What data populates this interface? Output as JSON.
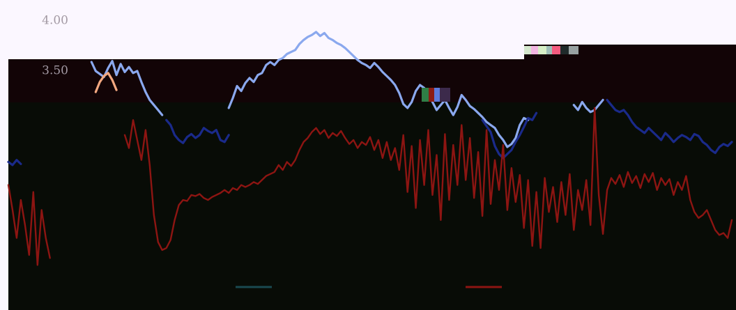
{
  "chart_data": {
    "type": "line",
    "title": "",
    "xlabel": "",
    "ylabel": "",
    "y_ticks": [
      {
        "label": "4.00",
        "value": 4.0
      },
      {
        "label": "3.50",
        "value": 3.5
      }
    ],
    "ylim": [
      1.1,
      4.2
    ],
    "xlim": [
      0,
      175
    ],
    "grid": false,
    "legend_position": "bottom",
    "series": [
      {
        "color": "#8aa8ee",
        "values": [
          [
            20,
            3.58
          ],
          [
            21,
            3.49
          ],
          [
            22,
            3.46
          ],
          [
            23,
            3.43
          ],
          [
            24,
            3.52
          ],
          [
            25,
            3.59
          ],
          [
            26,
            3.45
          ],
          [
            27,
            3.56
          ],
          [
            28,
            3.48
          ],
          [
            29,
            3.53
          ],
          [
            30,
            3.47
          ],
          [
            31,
            3.49
          ],
          [
            32,
            3.38
          ],
          [
            33,
            3.28
          ],
          [
            34,
            3.2
          ],
          [
            35,
            3.15
          ],
          [
            36,
            3.1
          ],
          [
            37,
            3.05
          ],
          [
            53,
            3.12
          ],
          [
            54,
            3.22
          ],
          [
            55,
            3.34
          ],
          [
            56,
            3.29
          ],
          [
            57,
            3.37
          ],
          [
            58,
            3.42
          ],
          [
            59,
            3.38
          ],
          [
            60,
            3.45
          ],
          [
            61,
            3.47
          ],
          [
            62,
            3.55
          ],
          [
            63,
            3.58
          ],
          [
            64,
            3.55
          ],
          [
            65,
            3.6
          ],
          [
            66,
            3.62
          ],
          [
            67,
            3.66
          ],
          [
            68,
            3.68
          ],
          [
            69,
            3.7
          ],
          [
            70,
            3.76
          ],
          [
            71,
            3.8
          ],
          [
            72,
            3.83
          ],
          [
            73,
            3.85
          ],
          [
            74,
            3.88
          ],
          [
            75,
            3.84
          ],
          [
            76,
            3.87
          ],
          [
            77,
            3.82
          ],
          [
            78,
            3.8
          ],
          [
            79,
            3.77
          ],
          [
            80,
            3.75
          ],
          [
            81,
            3.72
          ],
          [
            82,
            3.68
          ],
          [
            83,
            3.64
          ],
          [
            84,
            3.6
          ],
          [
            85,
            3.57
          ],
          [
            86,
            3.55
          ],
          [
            87,
            3.52
          ],
          [
            88,
            3.57
          ],
          [
            89,
            3.53
          ],
          [
            90,
            3.48
          ],
          [
            91,
            3.44
          ],
          [
            92,
            3.4
          ],
          [
            93,
            3.35
          ],
          [
            94,
            3.27
          ],
          [
            95,
            3.16
          ],
          [
            96,
            3.12
          ],
          [
            97,
            3.18
          ],
          [
            98,
            3.29
          ],
          [
            99,
            3.35
          ],
          [
            100,
            3.32
          ],
          [
            101,
            3.26
          ],
          [
            102,
            3.18
          ],
          [
            103,
            3.1
          ],
          [
            104,
            3.15
          ],
          [
            105,
            3.2
          ],
          [
            106,
            3.12
          ],
          [
            107,
            3.05
          ],
          [
            108,
            3.13
          ],
          [
            109,
            3.25
          ],
          [
            110,
            3.2
          ],
          [
            111,
            3.14
          ],
          [
            112,
            3.11
          ],
          [
            113,
            3.07
          ],
          [
            114,
            3.03
          ],
          [
            115,
            2.98
          ],
          [
            116,
            2.95
          ],
          [
            117,
            2.92
          ],
          [
            118,
            2.85
          ],
          [
            119,
            2.8
          ],
          [
            120,
            2.73
          ],
          [
            121,
            2.76
          ],
          [
            122,
            2.82
          ],
          [
            123,
            2.95
          ],
          [
            124,
            3.02
          ],
          [
            125,
            3.0
          ],
          [
            136,
            3.15
          ],
          [
            137,
            3.1
          ],
          [
            138,
            3.18
          ],
          [
            139,
            3.12
          ],
          [
            140,
            3.08
          ],
          [
            141,
            3.1
          ],
          [
            142,
            3.15
          ],
          [
            143,
            3.2
          ]
        ]
      },
      {
        "color": "#1a2a8a",
        "values": [
          [
            0,
            2.58
          ],
          [
            1,
            2.55
          ],
          [
            2,
            2.6
          ],
          [
            3,
            2.56
          ],
          [
            38,
            3.0
          ],
          [
            39,
            2.95
          ],
          [
            40,
            2.85
          ],
          [
            41,
            2.8
          ],
          [
            42,
            2.77
          ],
          [
            43,
            2.83
          ],
          [
            44,
            2.86
          ],
          [
            45,
            2.82
          ],
          [
            46,
            2.85
          ],
          [
            47,
            2.92
          ],
          [
            48,
            2.89
          ],
          [
            49,
            2.87
          ],
          [
            50,
            2.9
          ],
          [
            51,
            2.8
          ],
          [
            52,
            2.78
          ],
          [
            53,
            2.85
          ],
          [
            114,
            3.0
          ],
          [
            115,
            2.94
          ],
          [
            116,
            2.88
          ],
          [
            117,
            2.74
          ],
          [
            118,
            2.66
          ],
          [
            119,
            2.62
          ],
          [
            120,
            2.66
          ],
          [
            121,
            2.7
          ],
          [
            122,
            2.78
          ],
          [
            123,
            2.85
          ],
          [
            124,
            2.93
          ],
          [
            125,
            3.02
          ],
          [
            126,
            3.0
          ],
          [
            127,
            3.07
          ],
          [
            144,
            3.2
          ],
          [
            145,
            3.15
          ],
          [
            146,
            3.1
          ],
          [
            147,
            3.08
          ],
          [
            148,
            3.1
          ],
          [
            149,
            3.05
          ],
          [
            150,
            2.98
          ],
          [
            151,
            2.93
          ],
          [
            152,
            2.9
          ],
          [
            153,
            2.87
          ],
          [
            154,
            2.92
          ],
          [
            155,
            2.88
          ],
          [
            156,
            2.84
          ],
          [
            157,
            2.8
          ],
          [
            158,
            2.87
          ],
          [
            159,
            2.83
          ],
          [
            160,
            2.78
          ],
          [
            161,
            2.82
          ],
          [
            162,
            2.85
          ],
          [
            163,
            2.83
          ],
          [
            164,
            2.8
          ],
          [
            165,
            2.86
          ],
          [
            166,
            2.84
          ],
          [
            167,
            2.78
          ],
          [
            168,
            2.75
          ],
          [
            169,
            2.7
          ],
          [
            170,
            2.67
          ],
          [
            171,
            2.73
          ],
          [
            172,
            2.76
          ],
          [
            173,
            2.74
          ],
          [
            174,
            2.78
          ]
        ]
      },
      {
        "color": "#f2a880",
        "values": [
          [
            21,
            3.28
          ],
          [
            22,
            3.38
          ],
          [
            23,
            3.44
          ],
          [
            24,
            3.47
          ],
          [
            25,
            3.4
          ],
          [
            26,
            3.3
          ]
        ]
      },
      {
        "color": "#8d1512",
        "values": [
          [
            0,
            2.35
          ],
          [
            1,
            2.1
          ],
          [
            2,
            1.82
          ],
          [
            3,
            2.2
          ],
          [
            4,
            1.95
          ],
          [
            5,
            1.65
          ],
          [
            6,
            2.28
          ],
          [
            7,
            1.55
          ],
          [
            8,
            2.1
          ],
          [
            9,
            1.82
          ],
          [
            10,
            1.62
          ],
          [
            28,
            2.85
          ],
          [
            29,
            2.72
          ],
          [
            30,
            3.0
          ],
          [
            31,
            2.8
          ],
          [
            32,
            2.6
          ],
          [
            33,
            2.9
          ],
          [
            34,
            2.55
          ],
          [
            35,
            2.05
          ],
          [
            36,
            1.78
          ],
          [
            37,
            1.7
          ],
          [
            38,
            1.72
          ],
          [
            39,
            1.8
          ],
          [
            40,
            2.0
          ],
          [
            41,
            2.15
          ],
          [
            42,
            2.2
          ],
          [
            43,
            2.19
          ],
          [
            44,
            2.25
          ],
          [
            45,
            2.24
          ],
          [
            46,
            2.26
          ],
          [
            47,
            2.22
          ],
          [
            48,
            2.2
          ],
          [
            49,
            2.23
          ],
          [
            50,
            2.25
          ],
          [
            51,
            2.27
          ],
          [
            52,
            2.3
          ],
          [
            53,
            2.27
          ],
          [
            54,
            2.32
          ],
          [
            55,
            2.3
          ],
          [
            56,
            2.35
          ],
          [
            57,
            2.33
          ],
          [
            58,
            2.35
          ],
          [
            59,
            2.38
          ],
          [
            60,
            2.36
          ],
          [
            61,
            2.4
          ],
          [
            62,
            2.44
          ],
          [
            63,
            2.46
          ],
          [
            64,
            2.48
          ],
          [
            65,
            2.55
          ],
          [
            66,
            2.5
          ],
          [
            67,
            2.58
          ],
          [
            68,
            2.54
          ],
          [
            69,
            2.6
          ],
          [
            70,
            2.7
          ],
          [
            71,
            2.78
          ],
          [
            72,
            2.82
          ],
          [
            73,
            2.88
          ],
          [
            74,
            2.92
          ],
          [
            75,
            2.86
          ],
          [
            76,
            2.9
          ],
          [
            77,
            2.82
          ],
          [
            78,
            2.87
          ],
          [
            79,
            2.84
          ],
          [
            80,
            2.89
          ],
          [
            81,
            2.82
          ],
          [
            82,
            2.76
          ],
          [
            83,
            2.8
          ],
          [
            84,
            2.72
          ],
          [
            85,
            2.78
          ],
          [
            86,
            2.75
          ],
          [
            87,
            2.83
          ],
          [
            88,
            2.7
          ],
          [
            89,
            2.8
          ],
          [
            90,
            2.62
          ],
          [
            91,
            2.78
          ],
          [
            92,
            2.6
          ],
          [
            93,
            2.72
          ],
          [
            94,
            2.5
          ],
          [
            95,
            2.85
          ],
          [
            96,
            2.28
          ],
          [
            97,
            2.74
          ],
          [
            98,
            2.12
          ],
          [
            99,
            2.8
          ],
          [
            100,
            2.35
          ],
          [
            101,
            2.9
          ],
          [
            102,
            2.25
          ],
          [
            103,
            2.65
          ],
          [
            104,
            2.0
          ],
          [
            105,
            2.86
          ],
          [
            106,
            2.2
          ],
          [
            107,
            2.75
          ],
          [
            108,
            2.35
          ],
          [
            109,
            2.95
          ],
          [
            110,
            2.4
          ],
          [
            111,
            2.82
          ],
          [
            112,
            2.22
          ],
          [
            113,
            2.68
          ],
          [
            114,
            2.04
          ],
          [
            115,
            2.9
          ],
          [
            116,
            2.16
          ],
          [
            117,
            2.6
          ],
          [
            118,
            2.3
          ],
          [
            119,
            2.75
          ],
          [
            120,
            2.1
          ],
          [
            121,
            2.52
          ],
          [
            122,
            2.18
          ],
          [
            123,
            2.45
          ],
          [
            124,
            1.92
          ],
          [
            125,
            2.4
          ],
          [
            126,
            1.74
          ],
          [
            127,
            2.28
          ],
          [
            128,
            1.72
          ],
          [
            129,
            2.42
          ],
          [
            130,
            2.08
          ],
          [
            131,
            2.33
          ],
          [
            132,
            1.98
          ],
          [
            133,
            2.38
          ],
          [
            134,
            2.05
          ],
          [
            135,
            2.46
          ],
          [
            136,
            1.9
          ],
          [
            137,
            2.3
          ],
          [
            138,
            2.1
          ],
          [
            139,
            2.4
          ],
          [
            140,
            1.95
          ],
          [
            141,
            3.12
          ],
          [
            142,
            2.25
          ],
          [
            143,
            1.86
          ],
          [
            144,
            2.3
          ],
          [
            145,
            2.42
          ],
          [
            146,
            2.36
          ],
          [
            147,
            2.45
          ],
          [
            148,
            2.33
          ],
          [
            149,
            2.48
          ],
          [
            150,
            2.37
          ],
          [
            151,
            2.44
          ],
          [
            152,
            2.32
          ],
          [
            153,
            2.46
          ],
          [
            154,
            2.38
          ],
          [
            155,
            2.47
          ],
          [
            156,
            2.3
          ],
          [
            157,
            2.42
          ],
          [
            158,
            2.35
          ],
          [
            159,
            2.41
          ],
          [
            160,
            2.25
          ],
          [
            161,
            2.38
          ],
          [
            162,
            2.3
          ],
          [
            163,
            2.44
          ],
          [
            164,
            2.2
          ],
          [
            165,
            2.08
          ],
          [
            166,
            2.02
          ],
          [
            167,
            2.05
          ],
          [
            168,
            2.1
          ],
          [
            169,
            2.0
          ],
          [
            170,
            1.9
          ],
          [
            171,
            1.85
          ],
          [
            172,
            1.87
          ],
          [
            173,
            1.82
          ],
          [
            174,
            2.0
          ]
        ]
      }
    ],
    "legend_swatch_colors": [
      "#1a4a50",
      "#8d1512"
    ]
  }
}
